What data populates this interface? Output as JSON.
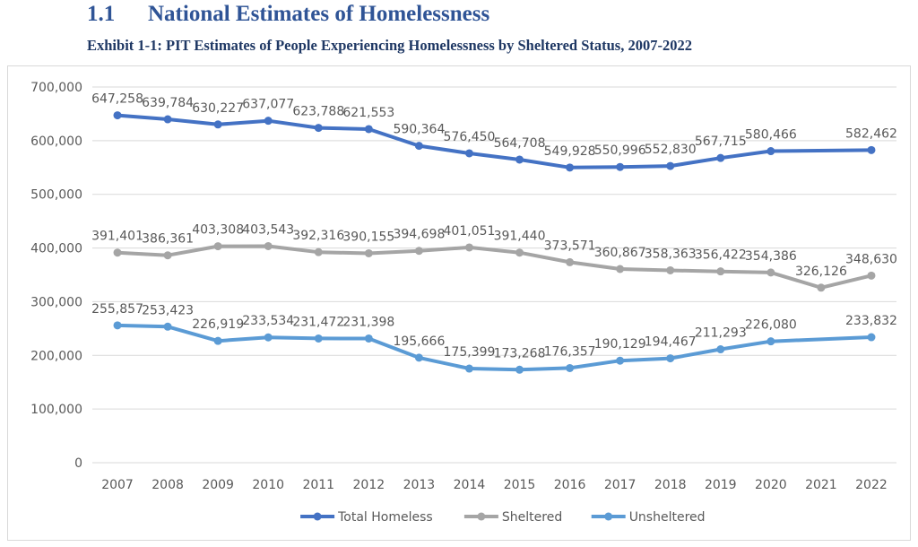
{
  "section": {
    "number": "1.1",
    "title": "National Estimates of Homelessness"
  },
  "exhibit_title": "Exhibit 1-1: PIT Estimates of People Experiencing Homelessness by Sheltered Status, 2007-2022",
  "chart_data": {
    "type": "line",
    "title": "Exhibit 1-1: PIT Estimates of People Experiencing Homelessness by Sheltered Status, 2007-2022",
    "xlabel": "",
    "ylabel": "",
    "ylim": [
      0,
      700000
    ],
    "yticks": [
      "0",
      "100,000",
      "200,000",
      "300,000",
      "400,000",
      "500,000",
      "600,000",
      "700,000"
    ],
    "grid": true,
    "legend_position": "bottom",
    "categories": [
      "2007",
      "2008",
      "2009",
      "2010",
      "2011",
      "2012",
      "2013",
      "2014",
      "2015",
      "2016",
      "2017",
      "2018",
      "2019",
      "2020",
      "2021",
      "2022"
    ],
    "series": [
      {
        "name": "Total Homeless",
        "color": "#4472C4",
        "values": [
          647258,
          639784,
          630227,
          637077,
          623788,
          621553,
          590364,
          576450,
          564708,
          549928,
          550996,
          552830,
          567715,
          580466,
          null,
          582462
        ],
        "labels": [
          "647,258",
          "639,784",
          "630,227",
          "637,077",
          "623,788",
          "621,553",
          "590,364",
          "576,450",
          "564,708",
          "549,928",
          "550,996",
          "552,830",
          "567,715",
          "580,466",
          null,
          "582,462"
        ]
      },
      {
        "name": "Sheltered",
        "color": "#A5A5A5",
        "values": [
          391401,
          386361,
          403308,
          403543,
          392316,
          390155,
          394698,
          401051,
          391440,
          373571,
          360867,
          358363,
          356422,
          354386,
          326126,
          348630
        ],
        "labels": [
          "391,401",
          "386,361",
          "403,308",
          "403,543",
          "392,316",
          "390,155",
          "394,698",
          "401,051",
          "391,440",
          "373,571",
          "360,867",
          "358,363",
          "356,422",
          "354,386",
          "326,126",
          "348,630"
        ]
      },
      {
        "name": "Unsheltered",
        "color": "#5B9BD5",
        "values": [
          255857,
          253423,
          226919,
          233534,
          231472,
          231398,
          195666,
          175399,
          173268,
          176357,
          190129,
          194467,
          211293,
          226080,
          null,
          233832
        ],
        "labels": [
          "255,857",
          "253,423",
          "226,919",
          "233,534",
          "231,472",
          "231,398",
          "195,666",
          "175,399",
          "173,268",
          "176,357",
          "190,129",
          "194,467",
          "211,293",
          "226,080",
          null,
          "233,832"
        ]
      }
    ]
  }
}
